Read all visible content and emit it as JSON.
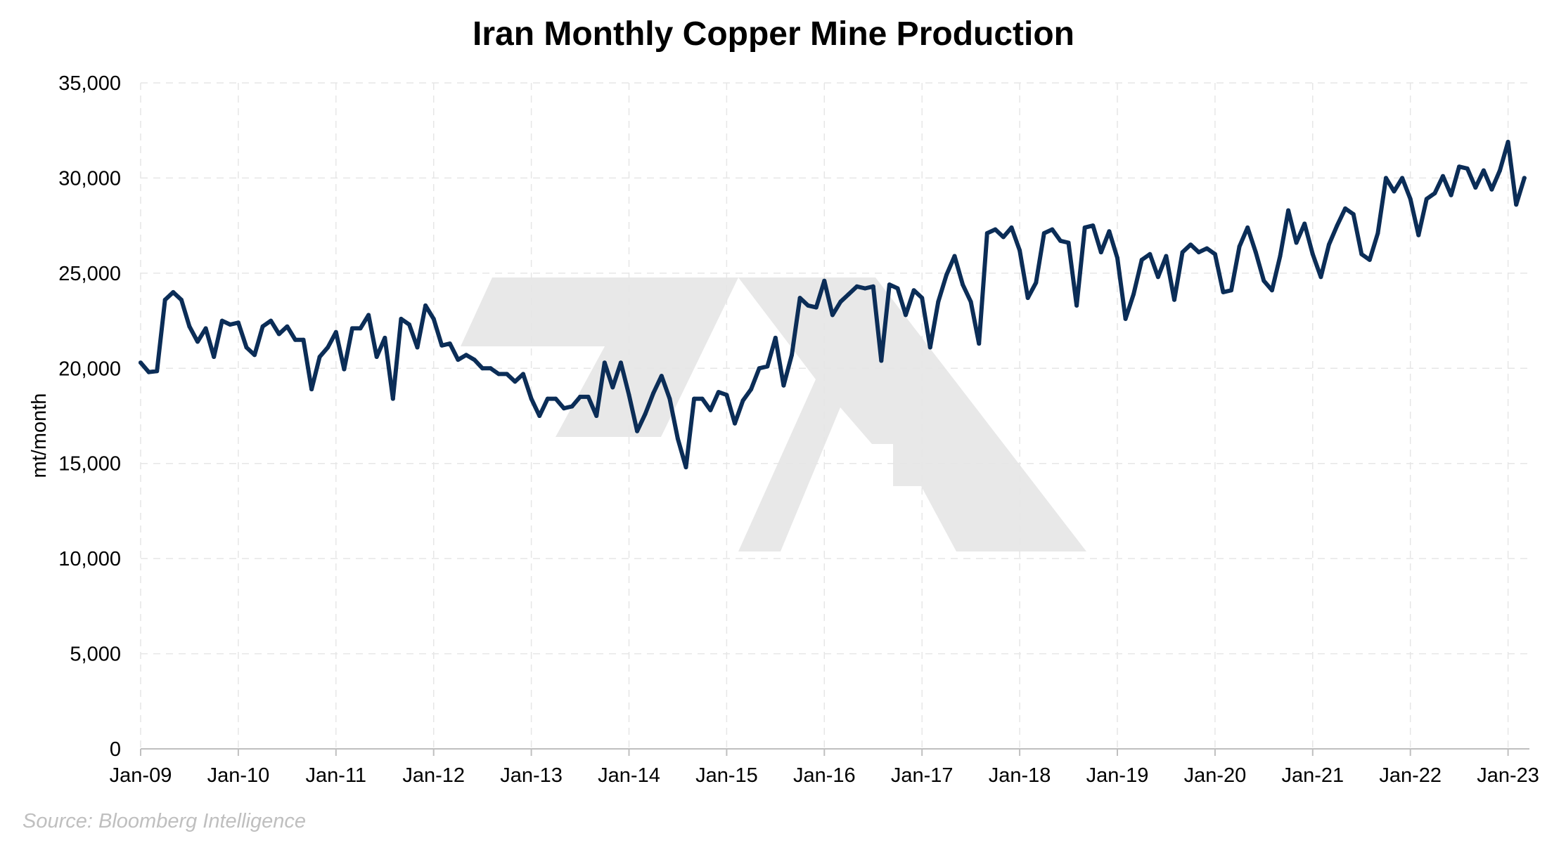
{
  "source": "Source: Bloomberg Intelligence",
  "colors": {
    "series": "#0b2d57",
    "watermark": "#e8e8e8",
    "grid": "#e6e6e6",
    "axis": "#bfbfbf"
  },
  "chart_data": {
    "type": "line",
    "title": "Iran Monthly Copper Mine Production",
    "xlabel": "",
    "ylabel": "mt/month",
    "ylim": [
      0,
      35000
    ],
    "xlim": [
      "Jan-09",
      "May-23"
    ],
    "grid": true,
    "legend": "none",
    "y_ticks": [
      {
        "value": 0,
        "label": "0"
      },
      {
        "value": 5000,
        "label": "5,000"
      },
      {
        "value": 10000,
        "label": "10,000"
      },
      {
        "value": 15000,
        "label": "15,000"
      },
      {
        "value": 20000,
        "label": "20,000"
      },
      {
        "value": 25000,
        "label": "25,000"
      },
      {
        "value": 30000,
        "label": "30,000"
      },
      {
        "value": 35000,
        "label": "35,000"
      }
    ],
    "x_ticks": [
      {
        "label": "Jan-09",
        "month_index": 0
      },
      {
        "label": "Jan-10",
        "month_index": 12
      },
      {
        "label": "Jan-11",
        "month_index": 24
      },
      {
        "label": "Jan-12",
        "month_index": 36
      },
      {
        "label": "Jan-13",
        "month_index": 48
      },
      {
        "label": "Jan-14",
        "month_index": 60
      },
      {
        "label": "Jan-15",
        "month_index": 72
      },
      {
        "label": "Jan-16",
        "month_index": 84
      },
      {
        "label": "Jan-17",
        "month_index": 96
      },
      {
        "label": "Jan-18",
        "month_index": 108
      },
      {
        "label": "Jan-19",
        "month_index": 120
      },
      {
        "label": "Jan-20",
        "month_index": 132
      },
      {
        "label": "Jan-21",
        "month_index": 144
      },
      {
        "label": "Jan-22",
        "month_index": 156
      },
      {
        "label": "Jan-23",
        "month_index": 168
      }
    ],
    "x_start": "Jan-09",
    "x_step": "1 month",
    "series": [
      {
        "values": [
          20300,
          19800,
          19850,
          23600,
          24000,
          23600,
          22200,
          21400,
          22100,
          20600,
          22500,
          22300,
          22400,
          21100,
          20700,
          22200,
          22500,
          21800,
          22200,
          21500,
          21500,
          18900,
          20600,
          21100,
          21900,
          19950,
          22100,
          22100,
          22800,
          20600,
          21600,
          18400,
          22600,
          22300,
          21100,
          23300,
          22600,
          21200,
          21300,
          20450,
          20700,
          20450,
          20000,
          20000,
          19700,
          19700,
          19300,
          19700,
          18400,
          17500,
          18400,
          18400,
          17900,
          18000,
          18500,
          18500,
          17500,
          20300,
          19000,
          20300,
          18600,
          16700,
          17600,
          18700,
          19600,
          18400,
          16300,
          14800,
          18400,
          18400,
          17800,
          18750,
          18600,
          17100,
          18300,
          18900,
          20000,
          20100,
          21600,
          19100,
          20700,
          23700,
          23300,
          23200,
          24600,
          22800,
          23500,
          23900,
          24300,
          24200,
          24300,
          20400,
          24400,
          24200,
          22800,
          24100,
          23700,
          21100,
          23500,
          24900,
          25900,
          24400,
          23500,
          21300,
          27100,
          27300,
          26900,
          27400,
          26200,
          23700,
          24500,
          27100,
          27300,
          26700,
          26600,
          23300,
          27400,
          27500,
          26100,
          27200,
          25800,
          22600,
          23900,
          25700,
          26000,
          24800,
          25900,
          23600,
          26100,
          26500,
          26100,
          26300,
          26000,
          24000,
          24100,
          26400,
          27400,
          26100,
          24600,
          24100,
          25900,
          28300,
          26600,
          27600,
          26000,
          24800,
          26500,
          27500,
          28400,
          28100,
          26000,
          25700,
          27100,
          30000,
          29300,
          30000,
          28900,
          27000,
          28900,
          29200,
          30100,
          29100,
          30600,
          30500,
          29500,
          30400,
          29400,
          30400,
          31900,
          28600,
          30000
        ]
      }
    ]
  }
}
